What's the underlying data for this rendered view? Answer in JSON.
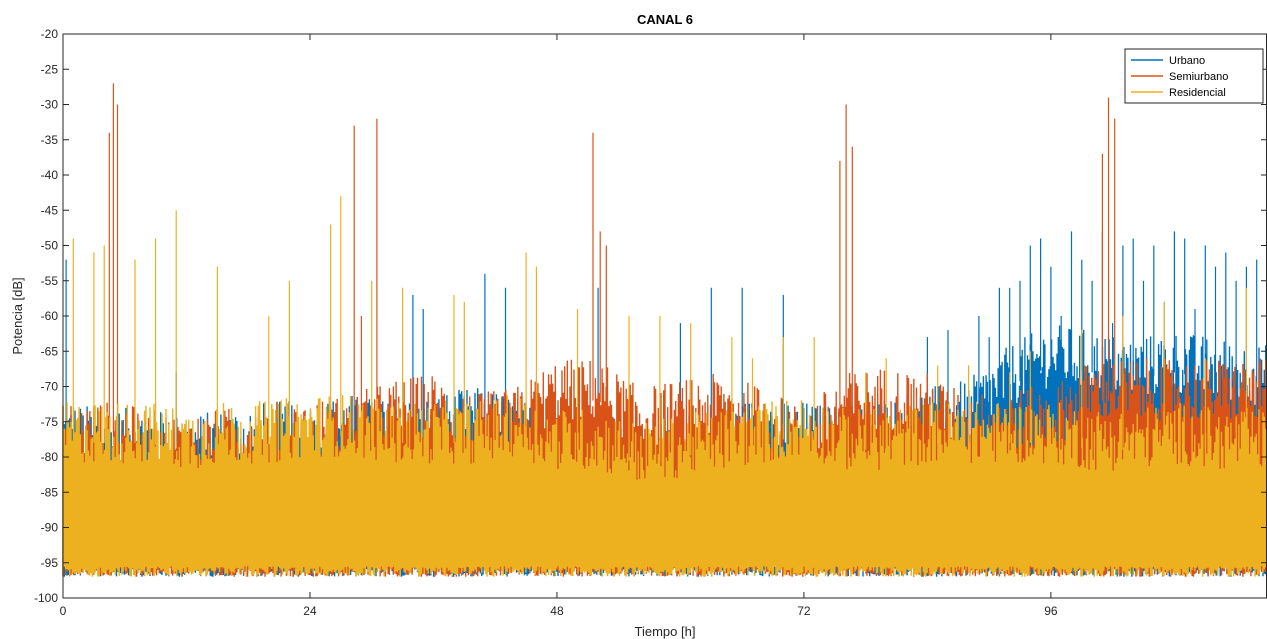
{
  "chart_data": {
    "type": "line",
    "title": "CANAL 6",
    "xlabel": "Tiempo [h]",
    "ylabel": "Potencia [dB]",
    "xlim": [
      0,
      117
    ],
    "ylim": [
      -100,
      -20
    ],
    "xticks": [
      "0",
      "24",
      "48",
      "72",
      "96"
    ],
    "yticks": [
      "-20",
      "-25",
      "-30",
      "-35",
      "-40",
      "-45",
      "-50",
      "-55",
      "-60",
      "-65",
      "-70",
      "-75",
      "-80",
      "-85",
      "-90",
      "-95",
      "-100"
    ],
    "grid": false,
    "legend_position": "top-right",
    "series": [
      {
        "name": "Urbano",
        "color": "#0072BD",
        "x": [
          0,
          4,
          8,
          12,
          16,
          20,
          24,
          28,
          32,
          36,
          40,
          44,
          48,
          52,
          56,
          60,
          64,
          68,
          72,
          76,
          80,
          84,
          88,
          92,
          96,
          100,
          104,
          108,
          112,
          117
        ],
        "y": [
          -86,
          -87,
          -87,
          -88,
          -87,
          -86,
          -86,
          -85,
          -86,
          -85,
          -84,
          -85,
          -88,
          -88,
          -89,
          -88,
          -87,
          -85,
          -86,
          -87,
          -85,
          -84,
          -83,
          -78,
          -75,
          -76,
          -77,
          -76,
          -77,
          -78
        ],
        "peaks_x": [
          0.3,
          11,
          34,
          35,
          41,
          43,
          52,
          60,
          63,
          66,
          70,
          75,
          84,
          86,
          89,
          90,
          91,
          92,
          93,
          94,
          95,
          96,
          97,
          98,
          99,
          100,
          101,
          102,
          103,
          104,
          105,
          106,
          107,
          108,
          109,
          110,
          111,
          112,
          113,
          114,
          115,
          116
        ],
        "peaks_y": [
          -52,
          -68,
          -57,
          -59,
          -54,
          -56,
          -56,
          -61,
          -56,
          -56,
          -57,
          -73,
          -63,
          -62,
          -60,
          -63,
          -56,
          -56,
          -55,
          -50,
          -49,
          -53,
          -60,
          -48,
          -52,
          -55,
          -48,
          -61,
          -50,
          -49,
          -55,
          -50,
          -58,
          -48,
          -49,
          -59,
          -50,
          -53,
          -51,
          -55,
          -53,
          -52
        ]
      },
      {
        "name": "Semiurbano",
        "color": "#D95319",
        "x": [
          0,
          4,
          8,
          12,
          16,
          20,
          24,
          28,
          32,
          36,
          40,
          44,
          48,
          52,
          56,
          60,
          64,
          68,
          72,
          76,
          80,
          84,
          88,
          92,
          96,
          100,
          104,
          108,
          112,
          117
        ],
        "y": [
          -86,
          -86,
          -87,
          -88,
          -87,
          -86,
          -86,
          -85,
          -83,
          -82,
          -85,
          -84,
          -80,
          -80,
          -84,
          -83,
          -82,
          -84,
          -87,
          -82,
          -81,
          -82,
          -85,
          -84,
          -84,
          -80,
          -80,
          -80,
          -80,
          -80
        ],
        "peaks_x": [
          4.5,
          4.9,
          5.3,
          28.3,
          29,
          30.5,
          51.5,
          52.2,
          52.8,
          75.5,
          76.1,
          76.7,
          101,
          101.6,
          102.2
        ],
        "peaks_y": [
          -34,
          -27,
          -30,
          -33,
          -60,
          -32,
          -34,
          -48,
          -50,
          -38,
          -30,
          -36,
          -37,
          -29,
          -32
        ]
      },
      {
        "name": "Residencial",
        "color": "#EDB120",
        "x": [
          0,
          4,
          8,
          12,
          16,
          20,
          24,
          28,
          32,
          36,
          40,
          44,
          48,
          52,
          56,
          60,
          64,
          68,
          72,
          76,
          80,
          84,
          88,
          92,
          96,
          100,
          104,
          108,
          112,
          117
        ],
        "y": [
          -86,
          -86,
          -86,
          -87,
          -86,
          -86,
          -85,
          -85,
          -86,
          -86,
          -86,
          -85,
          -87,
          -87,
          -89,
          -88,
          -87,
          -86,
          -85,
          -87,
          -87,
          -86,
          -86,
          -86,
          -86,
          -87,
          -87,
          -86,
          -87,
          -87
        ],
        "peaks_x": [
          1,
          3,
          4,
          7,
          9,
          11,
          15,
          20,
          22,
          26,
          27,
          30,
          33,
          38,
          39,
          45,
          46,
          50,
          55,
          58,
          61,
          65,
          67,
          70,
          73,
          78,
          80,
          85,
          88,
          92,
          94,
          99,
          103,
          107,
          111,
          115
        ],
        "peaks_y": [
          -49,
          -51,
          -50,
          -52,
          -49,
          -45,
          -53,
          -60,
          -55,
          -47,
          -43,
          -55,
          -56,
          -57,
          -58,
          -51,
          -53,
          -59,
          -60,
          -60,
          -61,
          -63,
          -66,
          -63,
          -63,
          -68,
          -66,
          -67,
          -67,
          -68,
          -65,
          -62,
          -60,
          -58,
          -66,
          -56
        ]
      }
    ]
  }
}
